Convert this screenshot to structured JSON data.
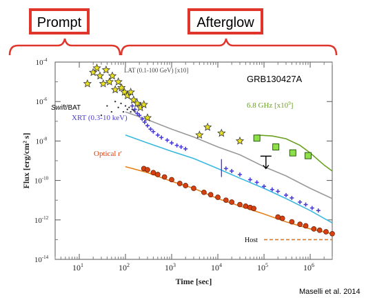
{
  "header": {
    "prompt_label": "Prompt",
    "afterglow_label": "Afterglow"
  },
  "citation": "Maselli et al. 2014",
  "colors": {
    "brace": "#e0352b",
    "box_border": "#e0352b",
    "lat": "#e8e020",
    "xrt": "#4a3dd6",
    "optical": "#d84010",
    "radio": "#6aa020",
    "xrt_model": "#39b8e0",
    "total_model": "#999999",
    "host": "#e07a20"
  },
  "chart_data": {
    "type": "scatter",
    "title": "GRB130427A",
    "xlabel": "Time [sec]",
    "ylabel": "Flux [erg/cm² s]",
    "x_scale": "log",
    "y_scale": "log",
    "xlim": [
      3,
      3000000
    ],
    "ylim": [
      1e-14,
      0.0001
    ],
    "x_ticks": [
      {
        "v": 10,
        "base": "10",
        "exp": "1"
      },
      {
        "v": 100,
        "base": "10",
        "exp": "2"
      },
      {
        "v": 1000,
        "base": "10",
        "exp": "3"
      },
      {
        "v": 10000,
        "base": "10",
        "exp": "4"
      },
      {
        "v": 100000,
        "base": "10",
        "exp": "5"
      },
      {
        "v": 1000000,
        "base": "10",
        "exp": "6"
      }
    ],
    "y_ticks": [
      {
        "v": 0.0001,
        "base": "10",
        "exp": "-4"
      },
      {
        "v": 1e-06,
        "base": "10",
        "exp": "-6"
      },
      {
        "v": 1e-08,
        "base": "10",
        "exp": "-8"
      },
      {
        "v": 1e-10,
        "base": "10",
        "exp": "-10"
      },
      {
        "v": 1e-12,
        "base": "10",
        "exp": "-12"
      },
      {
        "v": 1e-14,
        "base": "10",
        "exp": "-14"
      }
    ],
    "labels": {
      "lat": "LAT (0.1-100 GeV) [x10]",
      "bat_italic": "Swift",
      "bat_rest": "/BAT",
      "xrt": "XRT (0.3-10 keV)",
      "optical": "Optical r'",
      "radio": "6.8 GHz [x10",
      "radio_exp": "9",
      "radio_close": "]",
      "host": "Host"
    },
    "series": [
      {
        "name": "LAT (0.1-100 GeV) [x10]",
        "marker": "star",
        "x": [
          15,
          20,
          24,
          28,
          33,
          38,
          45,
          52,
          60,
          70,
          82,
          95,
          110,
          130,
          150,
          180,
          210,
          250,
          300,
          4000,
          6000,
          12000,
          30000
        ],
        "y": [
          8e-06,
          3e-05,
          5e-05,
          2e-05,
          8e-06,
          4e-05,
          1e-05,
          2e-05,
          4e-06,
          1e-05,
          5e-06,
          3e-06,
          2e-06,
          3e-06,
          1.2e-06,
          8e-07,
          5e-07,
          7e-07,
          1.5e-07,
          2e-08,
          5e-08,
          2.5e-08,
          1e-08
        ]
      },
      {
        "name": "Swift/BAT",
        "marker": "dot",
        "x": [
          30,
          40,
          50,
          60,
          70,
          80,
          90,
          100,
          110,
          120,
          130,
          140,
          150,
          160
        ],
        "y": [
          2e-07,
          6e-07,
          3e-07,
          1e-06,
          5e-07,
          8e-07,
          3e-07,
          6e-07,
          4e-07,
          5e-07,
          3e-07,
          4e-07,
          3.5e-07,
          3e-07
        ]
      },
      {
        "name": "XRT (0.3-10 keV)",
        "marker": "cross",
        "x": [
          140,
          160,
          180,
          200,
          230,
          260,
          300,
          350,
          400,
          500,
          600,
          800,
          1000,
          1300,
          1600,
          2000,
          15000,
          20000,
          30000,
          50000,
          70000,
          100000,
          150000,
          200000,
          300000,
          400000,
          600000,
          800000,
          1100000,
          1500000
        ],
        "y": [
          6e-07,
          4e-07,
          2.5e-07,
          2e-07,
          1.3e-07,
          9e-08,
          6e-08,
          4e-08,
          3e-08,
          2e-08,
          1.5e-08,
          1.1e-08,
          8e-09,
          6e-09,
          5e-09,
          4e-09,
          4e-10,
          3e-10,
          2e-10,
          1.1e-10,
          8e-11,
          5e-11,
          3.5e-11,
          2.8e-11,
          1.8e-11,
          1.3e-11,
          8e-12,
          6e-12,
          4e-12,
          3e-12
        ]
      },
      {
        "name": "Optical r'",
        "marker": "circle",
        "x": [
          250,
          300,
          400,
          500,
          700,
          1000,
          1500,
          2000,
          3000,
          5000,
          7000,
          10000,
          15000,
          20000,
          30000,
          40000,
          50000,
          60000,
          3000000,
          2200000,
          1600000,
          1200000,
          800000,
          600000,
          400000,
          250000,
          200000
        ],
        "y": [
          4e-10,
          3.5e-10,
          2.5e-10,
          2e-10,
          1.5e-10,
          1.1e-10,
          7e-11,
          5.5e-11,
          4e-11,
          2.5e-11,
          1.9e-11,
          1.4e-11,
          1e-11,
          8e-12,
          6e-12,
          5e-12,
          4.3e-12,
          3.8e-12,
          2e-13,
          2.5e-13,
          3e-13,
          3.5e-13,
          5e-13,
          6e-13,
          8e-13,
          1.2e-12,
          1.4e-12
        ]
      },
      {
        "name": "6.8 GHz [x10^9]",
        "marker": "square",
        "x": [
          70000,
          180000,
          420000,
          900000
        ],
        "y": [
          1.4e-08,
          5e-09,
          2.5e-09,
          1.8e-09
        ]
      }
    ],
    "models": [
      {
        "name": "total",
        "x": [
          100,
          300,
          1000,
          3000,
          10000,
          30000,
          100000,
          300000,
          1000000,
          3000000
        ],
        "y": [
          3e-07,
          1.2e-07,
          4e-08,
          1.6e-08,
          5e-09,
          2e-09,
          5e-10,
          1.7e-10,
          4e-11,
          1.2e-11
        ]
      },
      {
        "name": "xrt_model",
        "x": [
          100,
          300,
          1000,
          3000,
          10000,
          30000,
          100000,
          300000,
          1000000,
          3000000
        ],
        "y": [
          2e-08,
          8e-09,
          3e-09,
          1.3e-09,
          4e-10,
          1.3e-10,
          4e-11,
          1.2e-11,
          3e-12,
          7e-13
        ]
      },
      {
        "name": "optical_model",
        "x": [
          100,
          300,
          1000,
          3000,
          10000,
          30000,
          100000,
          300000,
          1000000,
          3000000
        ],
        "y": [
          5e-10,
          2.5e-10,
          9e-11,
          4e-11,
          1.2e-11,
          5e-12,
          2e-12,
          8e-13,
          3.5e-13,
          2e-13
        ]
      },
      {
        "name": "radio_model",
        "x": [
          70000,
          150000,
          300000,
          600000,
          1000000,
          2000000,
          3000000
        ],
        "y": [
          2e-08,
          1.8e-08,
          1.3e-08,
          6e-09,
          2.5e-09,
          6e-10,
          3e-10
        ]
      },
      {
        "name": "host",
        "x": [
          100000,
          3000000
        ],
        "y": [
          1e-13,
          1e-13
        ]
      }
    ],
    "upper_limit": {
      "x": 110000,
      "y": 4e-10
    },
    "errorbar": {
      "x": 12000,
      "y_low": 1.5e-10,
      "y_high": 1.2e-09
    }
  }
}
